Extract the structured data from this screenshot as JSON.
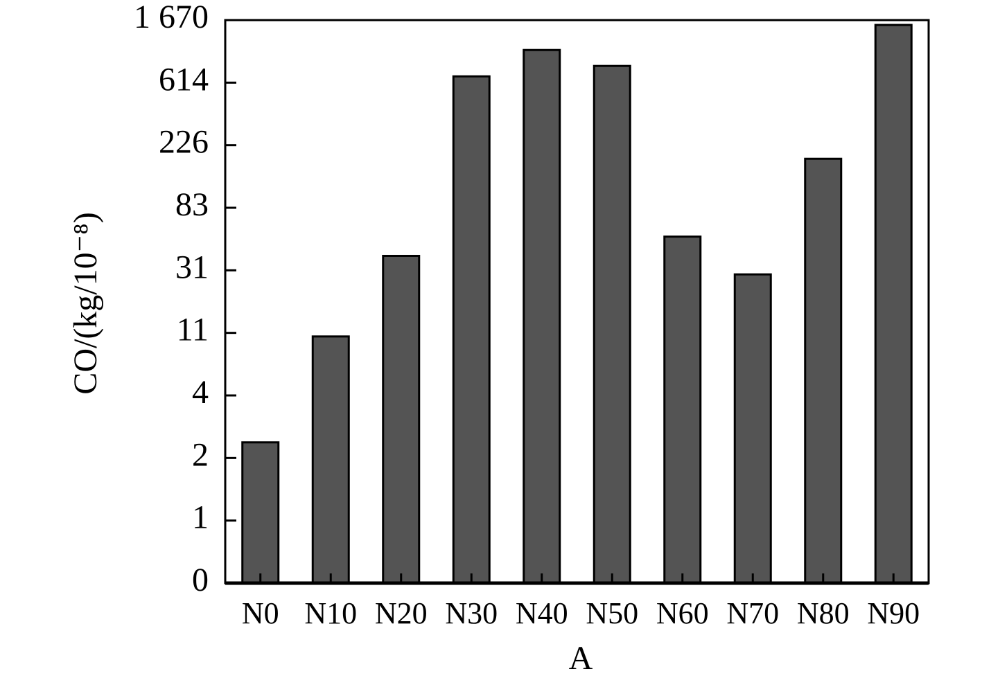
{
  "chart_data": {
    "type": "bar",
    "x_label": "A",
    "y_label": "CO/(kg/10⁻⁸)",
    "categories": [
      "N0",
      "N10",
      "N20",
      "N30",
      "N40",
      "N50",
      "N60",
      "N70",
      "N80",
      "N90"
    ],
    "values": [
      2.5,
      10.6,
      43,
      720,
      1165,
      896,
      59,
      29.7,
      195,
      1588
    ],
    "color": "#545454",
    "ylim": [
      0,
      1670
    ],
    "y_scale": "tick-spaced",
    "yticks": [
      0,
      1,
      2,
      4,
      11,
      31,
      83,
      226,
      614,
      {
        "value": 1670,
        "label": "1 670"
      }
    ],
    "grid": false
  }
}
